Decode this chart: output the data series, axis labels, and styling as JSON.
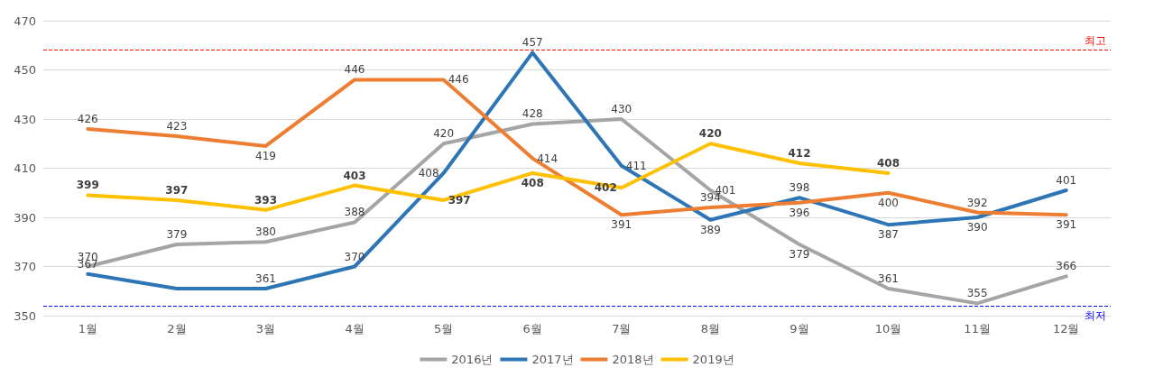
{
  "chart_data": {
    "type": "line",
    "categories": [
      "1월",
      "2월",
      "3월",
      "4월",
      "5월",
      "6월",
      "7월",
      "8월",
      "9월",
      "10월",
      "11월",
      "12월"
    ],
    "series": [
      {
        "name": "2016년",
        "color": "#a5a5a5",
        "values": [
          370,
          379,
          380,
          388,
          420,
          428,
          430,
          401,
          379,
          361,
          355,
          366
        ],
        "value_labels": [
          "370",
          "379",
          "380",
          "388",
          "420",
          "428",
          "430",
          "401",
          "379",
          "361",
          "355",
          "366"
        ]
      },
      {
        "name": "2017년",
        "color": "#2e75b6",
        "values": [
          367,
          361,
          361,
          370,
          408,
          457,
          411,
          389,
          398,
          387,
          390,
          401
        ],
        "value_labels": [
          "367",
          null,
          "361",
          "370",
          "408",
          "457",
          "411",
          "389",
          "398",
          "387",
          "390",
          "401"
        ]
      },
      {
        "name": "2018년",
        "color": "#ed7d31",
        "values": [
          426,
          423,
          419,
          446,
          446,
          414,
          391,
          394,
          396,
          400,
          392,
          391
        ],
        "value_labels": [
          "426",
          "423",
          "419",
          "446",
          "446",
          "414",
          "391",
          "394",
          "396",
          "400",
          "392",
          "391"
        ]
      },
      {
        "name": "2019년",
        "color": "#ffc000",
        "values": [
          399,
          397,
          393,
          403,
          397,
          408,
          402,
          420,
          412,
          408,
          null,
          null
        ],
        "value_labels": [
          "399",
          "397",
          "393",
          "403",
          "397",
          "408",
          "402",
          "420",
          "412",
          "408",
          null,
          null
        ]
      }
    ],
    "ylim": [
      350,
      470
    ],
    "yticks": [
      350,
      370,
      390,
      410,
      430,
      450,
      470
    ],
    "ref_lines": [
      {
        "axis": "y",
        "value": 458,
        "label": "최고",
        "color": "#ff0000",
        "line_style": "dashed"
      },
      {
        "axis": "y",
        "value": 354,
        "label": "최저",
        "color": "#0000ff",
        "line_style": "dashed"
      }
    ],
    "grid": "y",
    "legend": "bottom",
    "marker": "none",
    "line_style": "solid"
  }
}
